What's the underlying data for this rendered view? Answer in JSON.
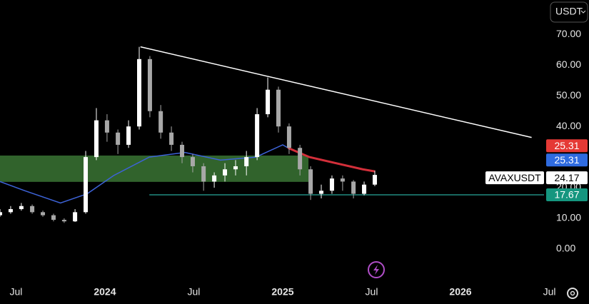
{
  "chart_data": {
    "type": "candlestick",
    "currency_button": "USDT",
    "xlim": [
      2023.41,
      2026.53
    ],
    "ylim": [
      -9.6,
      81.3
    ],
    "xticks": [
      {
        "value": 2023.5,
        "label": "Jul"
      },
      {
        "value": 2024,
        "label": "2024"
      },
      {
        "value": 2024.5,
        "label": "Jul"
      },
      {
        "value": 2025,
        "label": "2025"
      },
      {
        "value": 2025.5,
        "label": "Jul"
      },
      {
        "value": 2026,
        "label": "2026"
      },
      {
        "value": 2026.5,
        "label": "Jul"
      }
    ],
    "yticks": [
      {
        "value": 0,
        "label": "0.00"
      },
      {
        "value": 10,
        "label": "10.00"
      },
      {
        "value": 20,
        "label": "20.00"
      },
      {
        "value": 40,
        "label": "40.00"
      },
      {
        "value": 50,
        "label": "50.00"
      },
      {
        "value": 60,
        "label": "60.00"
      },
      {
        "value": 70,
        "label": "70.00"
      }
    ],
    "up_color": "#ffffff",
    "down_color": "#a8a8a8",
    "x": [
      2023.41,
      2023.47,
      2023.53,
      2023.591,
      2023.651,
      2023.711,
      2023.771,
      2023.832,
      2023.892,
      2023.952,
      2024.012,
      2024.073,
      2024.133,
      2024.193,
      2024.253,
      2024.314,
      2024.374,
      2024.434,
      2024.494,
      2024.555,
      2024.615,
      2024.675,
      2024.735,
      2024.796,
      2024.856,
      2024.916,
      2024.976,
      2025.036,
      2025.097,
      2025.157,
      2025.217,
      2025.277,
      2025.337,
      2025.398,
      2025.458,
      2025.518
    ],
    "open": [
      11,
      12,
      13,
      14,
      12,
      11,
      9.5,
      9,
      12,
      30,
      42,
      38,
      34,
      40,
      62,
      45,
      38,
      34,
      30,
      27,
      22,
      24,
      26,
      27,
      30,
      44,
      52,
      40,
      33,
      26,
      18,
      19,
      23,
      22,
      18,
      21
    ],
    "high": [
      13,
      14,
      15,
      14.5,
      12.5,
      11.5,
      10,
      13,
      32,
      46,
      44,
      39,
      42,
      66,
      63,
      47,
      40,
      35,
      31,
      28,
      25,
      28,
      29,
      32,
      46,
      56,
      53,
      41,
      34,
      27,
      21,
      24,
      24,
      22.5,
      22,
      25.5
    ],
    "low": [
      10.5,
      11.5,
      12.5,
      11.5,
      10.5,
      9,
      8.5,
      8.8,
      11.5,
      29,
      35,
      31,
      33,
      39,
      43,
      36,
      32,
      28,
      25,
      19,
      20,
      22,
      24,
      24,
      29,
      43,
      38,
      31,
      24,
      16,
      16.5,
      18,
      19,
      16.5,
      17.5,
      20.5
    ],
    "close": [
      12,
      13,
      14,
      12,
      11,
      9.5,
      9,
      12,
      30,
      42,
      38,
      34,
      40,
      62,
      45,
      38,
      34,
      30,
      27,
      22,
      24,
      26,
      27,
      30,
      44,
      52,
      40,
      33,
      26,
      18,
      19,
      23,
      22,
      18,
      21,
      24.17
    ],
    "zone": {
      "from": 21.9,
      "to": 30.5,
      "x": [
        2023.41,
        2025.145
      ],
      "color": "rgba(90,180,80,0.55)"
    },
    "support": {
      "value": 17.67,
      "x_start": 2024.25,
      "color": "#26a69a"
    },
    "trendline": {
      "x": [
        2024.2,
        2026.4
      ],
      "values": [
        66,
        36.4
      ],
      "color": "#ffffff"
    },
    "lines": [
      {
        "color": "#3d63d8",
        "x": [
          2023.41,
          2023.55,
          2023.75,
          2023.9,
          2024.05,
          2024.25,
          2024.45,
          2024.65,
          2024.85,
          2025.0,
          2025.03
        ],
        "values": [
          22,
          19,
          15,
          18,
          24,
          30,
          31.5,
          29,
          30,
          34,
          33
        ]
      },
      {
        "color": "#d32f3a",
        "x": [
          2025.03,
          2025.15,
          2025.3,
          2025.45,
          2025.52
        ],
        "values": [
          33,
          30,
          28,
          26,
          25.31
        ]
      }
    ],
    "price_labels": [
      {
        "value": 25.31,
        "color": "#e53935",
        "text_color": "#ffffff"
      },
      {
        "value": 25.31,
        "color": "#2f6be0",
        "text_color": "#ffffff"
      },
      {
        "name": "AVAXUSDT",
        "value": 24.17,
        "color": "#ffffff",
        "text_color": "#000000"
      },
      {
        "value": 17.67,
        "color": "#15967f",
        "text_color": "#ffffff"
      }
    ]
  }
}
